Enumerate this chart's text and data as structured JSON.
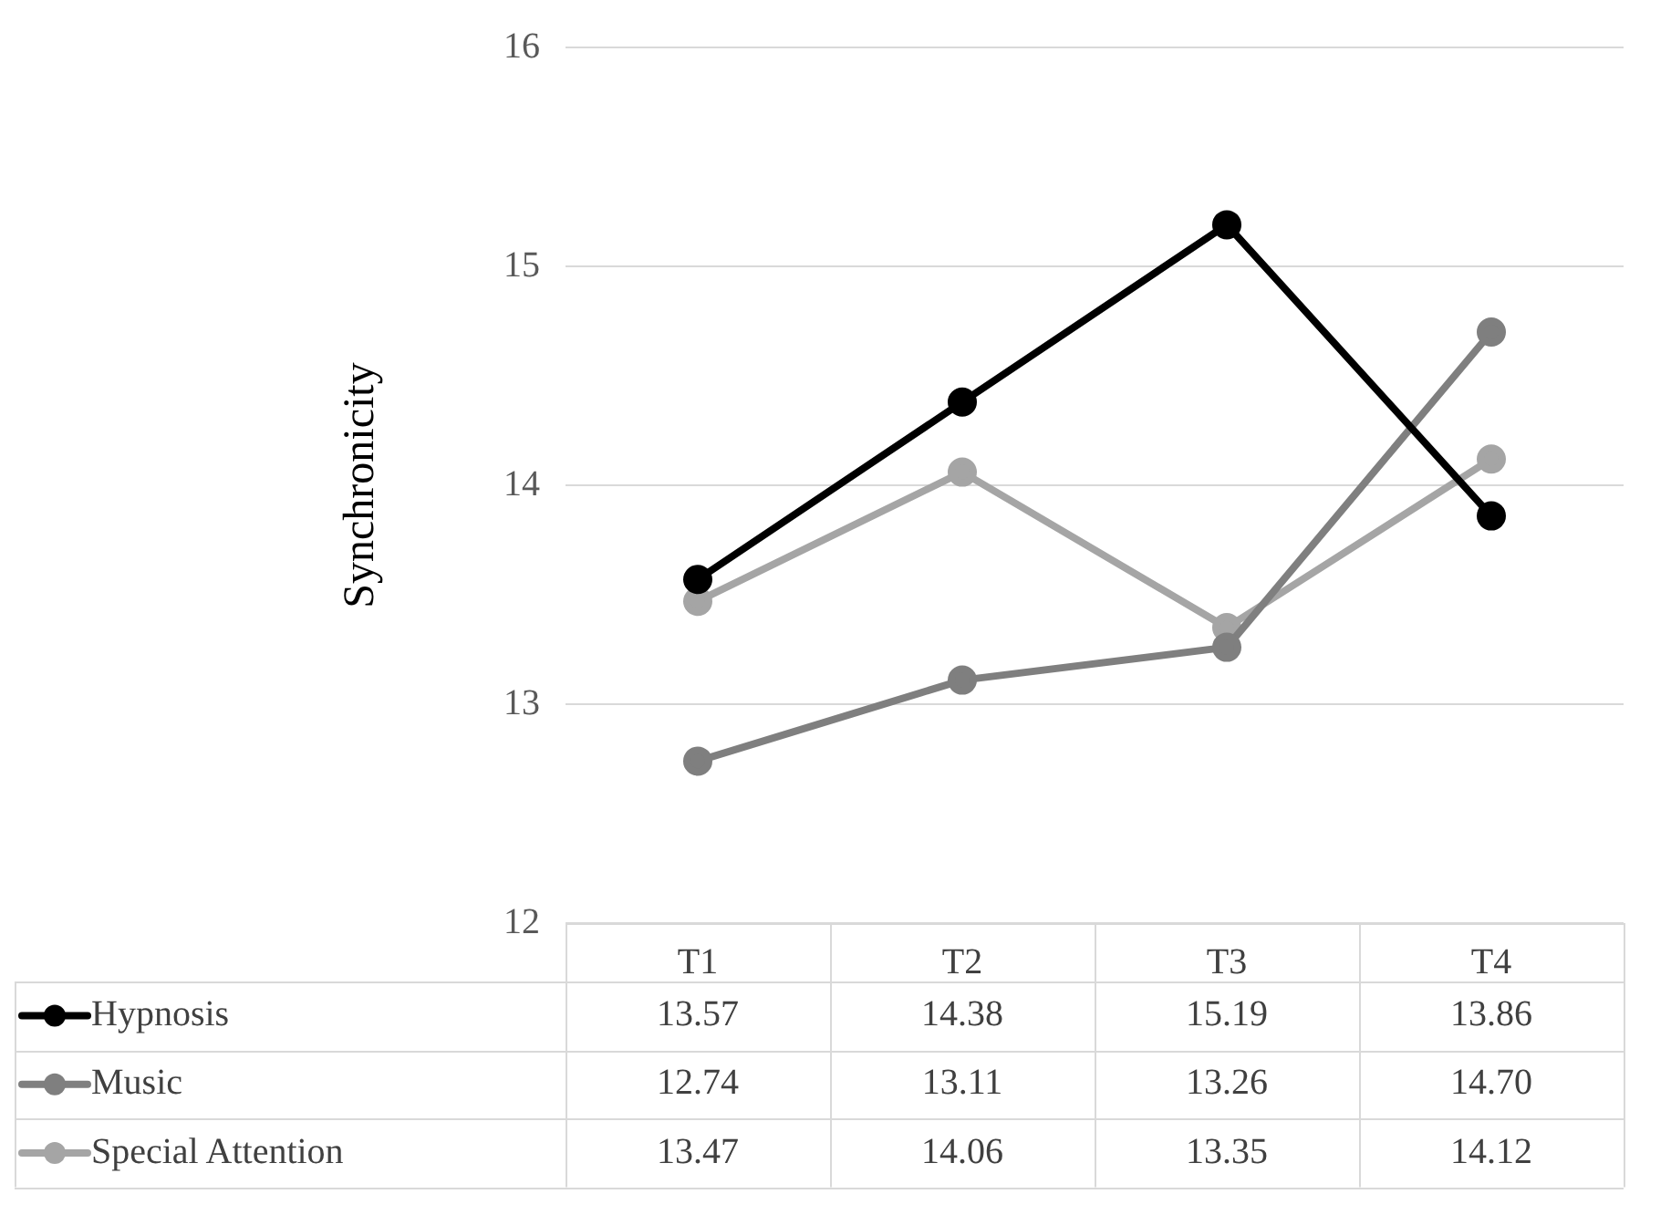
{
  "chart_data": {
    "type": "line",
    "ylabel": "Synchronicity",
    "categories": [
      "T1",
      "T2",
      "T3",
      "T4"
    ],
    "series": [
      {
        "name": "Hypnosis",
        "color": "#000000",
        "values": [
          13.57,
          14.38,
          15.19,
          13.86
        ],
        "value_labels": [
          "13.57",
          "14.38",
          "15.19",
          "13.86"
        ]
      },
      {
        "name": "Music",
        "color": "#7f7f7f",
        "values": [
          12.74,
          13.11,
          13.26,
          14.7
        ],
        "value_labels": [
          "12.74",
          "13.11",
          "13.26",
          "14.70"
        ]
      },
      {
        "name": "Special Attention",
        "color": "#a5a5a5",
        "values": [
          13.47,
          14.06,
          13.35,
          14.12
        ],
        "value_labels": [
          "13.47",
          "14.06",
          "13.35",
          "14.12"
        ]
      }
    ],
    "ylim": [
      12,
      16
    ],
    "yticks": [
      12,
      13,
      14,
      15,
      16
    ],
    "grid": "y",
    "legend": "bottom",
    "marker": "circle",
    "line_style": "solid"
  }
}
